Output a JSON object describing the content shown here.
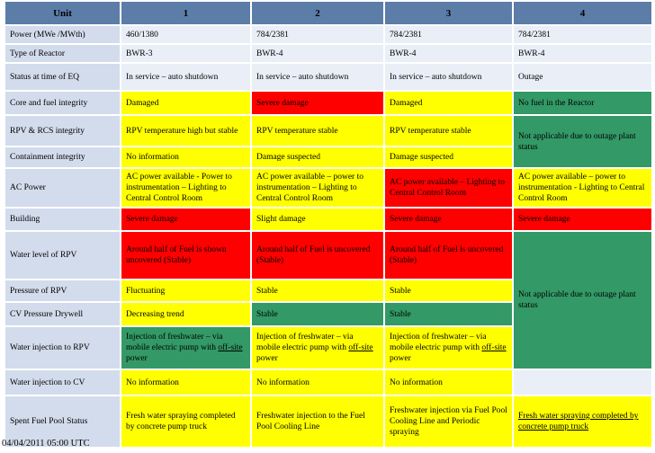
{
  "header": {
    "unit": "Unit",
    "u1": "1",
    "u2": "2",
    "u3": "3",
    "u4": "4"
  },
  "power": {
    "label": "Power (MWe /MWth)",
    "u1": "460/1380",
    "u2": "784/2381",
    "u3": "784/2381",
    "u4": "784/2381"
  },
  "reactor": {
    "label": "Type of Reactor",
    "u1": "BWR-3",
    "u2": "BWR-4",
    "u3": "BWR-4",
    "u4": "BWR-4"
  },
  "status": {
    "label": "Status at time of EQ",
    "u1": "In service – auto shutdown",
    "u2": "In service – auto shutdown",
    "u3": "In service – auto shutdown",
    "u4": "Outage"
  },
  "core": {
    "label": "Core and fuel integrity",
    "u1": "Damaged",
    "u2": "Severe damage",
    "u3": "Damaged",
    "u4": "No fuel in the Reactor"
  },
  "rpv_rcs": {
    "label": "RPV & RCS integrity",
    "u1": "RPV temperature high but stable",
    "u2": "RPV temperature stable",
    "u3": "RPV temperature stable",
    "u4": "Not applicable due to outage plant status"
  },
  "containment": {
    "label": "Containment integrity",
    "u1": "No information",
    "u2": "Damage suspected",
    "u3": "Damage suspected"
  },
  "ac_power": {
    "label": "AC Power",
    "u1": "AC power available - Power to instrumentation – Lighting to Central Control Room",
    "u2": "AC power available – power to instrumentation – Lighting to Central Control Room",
    "u3": "AC power available – Lighting to Central Control Room",
    "u4": "AC power available – power to instrumentation - Lighting to Central Control Room"
  },
  "building": {
    "label": "Building",
    "u1": "Severe damage",
    "u2": "Slight damage",
    "u3": "Severe damage",
    "u4": "Severe damage"
  },
  "water_level": {
    "label": "Water level of RPV",
    "u1": "Around half of Fuel is shown uncovered (Stable)",
    "u2": "Around half of Fuel is uncovered (Stable)",
    "u3": "Around half of Fuel is uncovered (Stable)",
    "u4": "Not applicable due to outage plant status"
  },
  "pressure": {
    "label": "Pressure of RPV",
    "u1": "Fluctuating",
    "u2": "Stable",
    "u3": "Stable"
  },
  "cv_pressure": {
    "label": "CV Pressure Drywell",
    "u1": "Decreasing trend",
    "u2": "Stable",
    "u3": "Stable"
  },
  "injection_rpv": {
    "label": "Water injection to RPV",
    "text_a": "Injection of freshwater – via mobile electric pump with",
    "offsite": "off-site",
    "power_word": "power"
  },
  "injection_cv": {
    "label": "Water injection to CV",
    "u1": "No information",
    "u2": "No information",
    "u3": "No information"
  },
  "spent_fuel": {
    "label": "Spent Fuel Pool Status",
    "u1": "Fresh water spraying completed by concrete pump truck",
    "u2": "Freshwater injection to the Fuel Pool Cooling Line",
    "u3": "Freshwater injection via Fuel Pool Cooling Line and Periodic spraying",
    "u4": "Fresh water spraying completed by concrete pump truck"
  },
  "footer": {
    "date": "04/04/2011 05:00 UTC"
  },
  "colors": {
    "header": "#5b7da8",
    "label": "#d3dcec",
    "yellow": "#ffff00",
    "red": "#ff0000",
    "green": "#339966"
  }
}
